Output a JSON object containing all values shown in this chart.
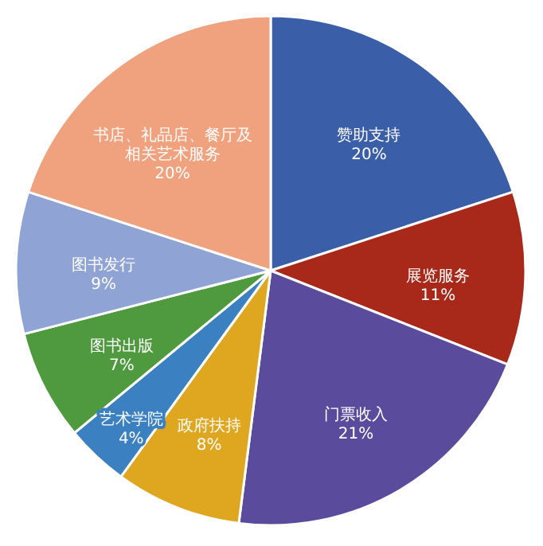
{
  "chart_data": {
    "type": "pie",
    "categories": [
      "赞助支持",
      "展览服务",
      "门票收入",
      "政府扶持",
      "艺术学院",
      "图书出版",
      "图书发行",
      "书店、礼品店、餐厅及相关艺术服务"
    ],
    "values": [
      20,
      11,
      21,
      8,
      4,
      7,
      9,
      20
    ],
    "value_labels": [
      "20%",
      "11%",
      "21%",
      "8%",
      "4%",
      "7%",
      "9%",
      "20%"
    ],
    "colors": [
      "#3b5ea8",
      "#a8281a",
      "#5b4b9c",
      "#dfa620",
      "#3b80c0",
      "#4f9a3f",
      "#8fa3d5",
      "#f0a17d"
    ],
    "legend": false
  }
}
